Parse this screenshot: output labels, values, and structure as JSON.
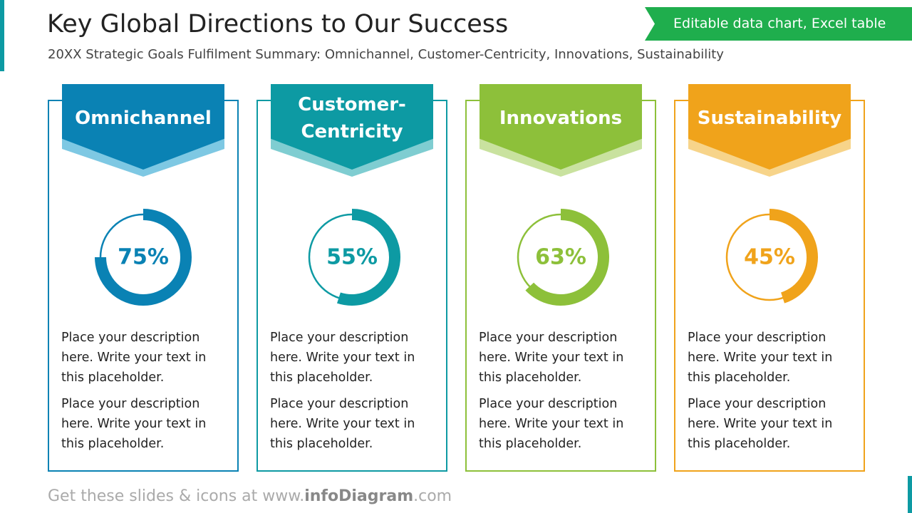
{
  "header": {
    "title": "Key Global Directions to Our Success",
    "subtitle": "20XX Strategic Goals Fulfilment Summary: Omnichannel, Customer-Centricity, Innovations, Sustainability"
  },
  "badge": "Editable data chart, Excel table",
  "footer": [
    "Get these slides & icons at www.",
    "infoDiagram",
    ".com"
  ],
  "chart_data": [
    {
      "type": "donut",
      "title": "Omnichannel",
      "values": [
        75
      ],
      "value_labels": [
        "75%"
      ],
      "color": "#0a82b4",
      "accent": "#7ec8e3",
      "annotations": [
        "Place your description here. Write your text in this placeholder.",
        "Place your description here. Write your text in this placeholder."
      ]
    },
    {
      "type": "donut",
      "title": "Customer-Centricity",
      "values": [
        55
      ],
      "value_labels": [
        "55%"
      ],
      "color": "#0d9aa3",
      "accent": "#7fcdd1",
      "annotations": [
        "Place your description here. Write your text in this placeholder.",
        "Place your description here. Write your text in this placeholder."
      ]
    },
    {
      "type": "donut",
      "title": "Innovations",
      "values": [
        63
      ],
      "value_labels": [
        "63%"
      ],
      "color": "#8dc03a",
      "accent": "#c9e29f",
      "annotations": [
        "Place your description here. Write your text in this placeholder.",
        "Place your description here. Write your text in this placeholder."
      ]
    },
    {
      "type": "donut",
      "title": "Sustainability",
      "values": [
        45
      ],
      "value_labels": [
        "45%"
      ],
      "color": "#f0a31b",
      "accent": "#f7d48a",
      "annotations": [
        "Place your description here. Write your text in this placeholder.",
        "Place your description here. Write your text in this placeholder."
      ]
    }
  ]
}
